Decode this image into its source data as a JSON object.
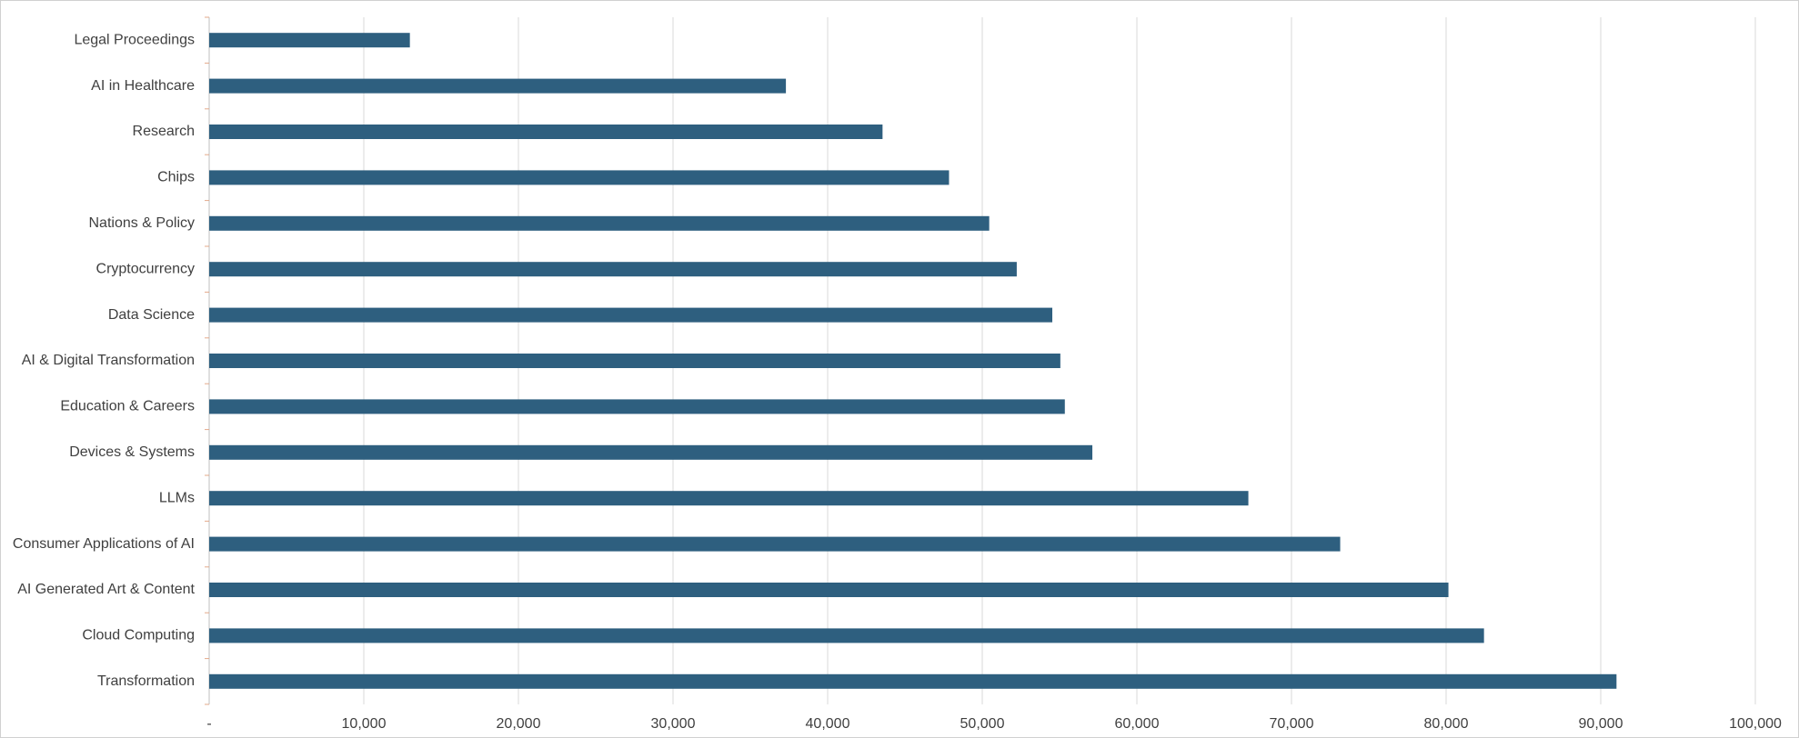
{
  "chart_data": {
    "type": "hbar",
    "categories": [
      "Legal Proceedings",
      "AI in Healthcare",
      "Research",
      "Chips",
      "Nations & Policy",
      "Cryptocurrency",
      "Data Science",
      "AI & Digital Transformation",
      "Education & Careers",
      "Devices & Systems",
      "LLMs",
      "Consumer Applications of AI",
      "AI Generated Art & Content",
      "Cloud Computing",
      "Transformation"
    ],
    "values": [
      12980,
      37300,
      43550,
      47850,
      50450,
      52230,
      54530,
      55050,
      55340,
      57120,
      67210,
      73150,
      80150,
      82450,
      91020
    ],
    "color": "#2e5f7f",
    "xlim": [
      0,
      100000
    ],
    "xticks": [
      {
        "value": 0,
        "label": "-"
      },
      {
        "value": 10000,
        "label": "10,000"
      },
      {
        "value": 20000,
        "label": "20,000"
      },
      {
        "value": 30000,
        "label": "30,000"
      },
      {
        "value": 40000,
        "label": "40,000"
      },
      {
        "value": 50000,
        "label": "50,000"
      },
      {
        "value": 60000,
        "label": "60,000"
      },
      {
        "value": 70000,
        "label": "70,000"
      },
      {
        "value": 80000,
        "label": "80,000"
      },
      {
        "value": 90000,
        "label": "90,000"
      },
      {
        "value": 100000,
        "label": "100,000"
      }
    ],
    "grid": true
  }
}
